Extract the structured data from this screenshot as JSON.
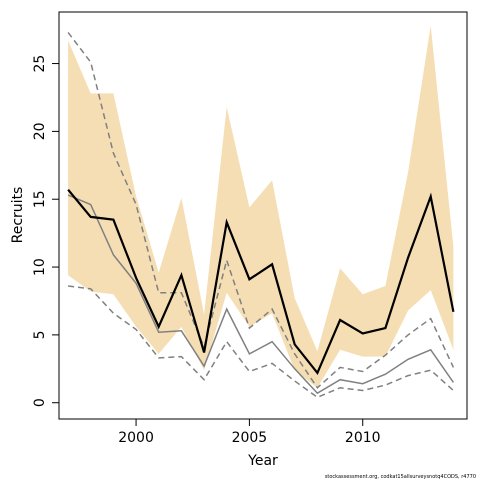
{
  "chart_data": {
    "type": "line",
    "xlabel": "Year",
    "ylabel": "Recruits",
    "source_note": "stockassessment.org, codkat15allsurveysnotq4CODS, r4770",
    "xlim": [
      1996.6,
      2014.6
    ],
    "ylim": [
      -1.2,
      28.8
    ],
    "x_ticks": [
      2000,
      2005,
      2010
    ],
    "y_ticks": [
      0,
      5,
      10,
      15,
      20,
      25
    ],
    "grid": false,
    "colors": {
      "band": "#f5deb3",
      "estimate": "#000000",
      "comparison": "#808080"
    },
    "x": [
      1997,
      1998,
      1999,
      2000,
      2001,
      2002,
      2003,
      2004,
      2005,
      2006,
      2007,
      2008,
      2009,
      2010,
      2011,
      2012,
      2013,
      2014
    ],
    "series": [
      {
        "role": "band_upper",
        "values": [
          26.7,
          22.8,
          22.8,
          15.2,
          9.6,
          15.1,
          6.5,
          21.8,
          14.4,
          16.4,
          7.7,
          3.8,
          9.9,
          8.0,
          8.6,
          17.0,
          27.8,
          11.5
        ]
      },
      {
        "role": "band_lower",
        "values": [
          9.4,
          8.2,
          8.0,
          5.6,
          3.6,
          5.6,
          2.4,
          8.1,
          5.6,
          6.6,
          2.4,
          1.1,
          3.9,
          3.4,
          3.4,
          6.8,
          8.3,
          3.9
        ]
      },
      {
        "role": "estimate",
        "values": [
          15.7,
          13.7,
          13.5,
          9.2,
          5.6,
          9.4,
          3.7,
          13.3,
          9.1,
          10.2,
          4.3,
          2.2,
          6.1,
          5.1,
          5.5,
          10.7,
          15.2,
          6.7
        ]
      },
      {
        "role": "comparison",
        "values": [
          15.3,
          14.6,
          10.9,
          8.8,
          5.2,
          5.3,
          2.7,
          6.9,
          3.6,
          4.5,
          2.5,
          0.7,
          1.7,
          1.4,
          2.1,
          3.2,
          3.9,
          1.5
        ]
      },
      {
        "role": "comparison_upper",
        "values": [
          27.3,
          25.1,
          18.4,
          14.6,
          8.1,
          8.1,
          4.1,
          10.5,
          5.5,
          6.9,
          3.6,
          1.1,
          2.6,
          2.3,
          3.5,
          5.0,
          6.2,
          2.6
        ]
      },
      {
        "role": "comparison_lower",
        "values": [
          8.6,
          8.4,
          6.6,
          5.4,
          3.3,
          3.4,
          1.7,
          4.5,
          2.3,
          2.9,
          1.6,
          0.4,
          1.1,
          0.9,
          1.3,
          2.0,
          2.4,
          0.9
        ]
      }
    ]
  }
}
